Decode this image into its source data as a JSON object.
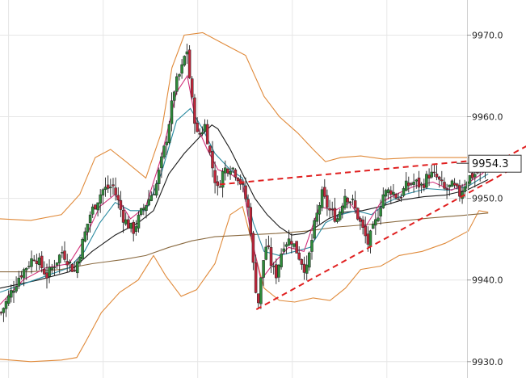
{
  "chart_data": {
    "type": "candlestick",
    "y_axis": {
      "position": "right",
      "ylim": [
        9928.0,
        9974.3
      ],
      "tick_labels": [
        "9970.0",
        "9960.0",
        "9950.0",
        "9940.0",
        "9930.0"
      ],
      "tick_values": [
        9970.0,
        9960.0,
        9950.0,
        9940.0,
        9930.0
      ]
    },
    "current_price_label": "9954.3",
    "current_price_value": 9954.3,
    "grid": true,
    "grid_x_bars": [
      4,
      48,
      92,
      136,
      180
    ],
    "bars": 190,
    "colors": {
      "up": "#2e8b3a",
      "down": "#c0263a",
      "bollinger": "#e08a3a",
      "ma_fast": "#d1307a",
      "ma_mid": "#2a8aa0",
      "ma_slow": "#1a1a1a",
      "ma_long": "#8a6a40",
      "trendline": "#e02020",
      "grid": "#e6e6e6"
    },
    "key_points": [
      [
        0,
        9936.0
      ],
      [
        12,
        9940.5
      ],
      [
        22,
        9943.0
      ],
      [
        30,
        9940.5
      ],
      [
        40,
        9943.5
      ],
      [
        48,
        9941.0
      ],
      [
        53,
        9944.5
      ],
      [
        58,
        9948.0
      ],
      [
        66,
        9951.0
      ],
      [
        73,
        9951.5
      ],
      [
        80,
        9947.5
      ],
      [
        86,
        9946.0
      ],
      [
        92,
        9948.5
      ],
      [
        101,
        9951.5
      ],
      [
        108,
        9957.5
      ],
      [
        113,
        9963.5
      ],
      [
        118,
        9966.0
      ],
      [
        121,
        9968.5
      ],
      [
        124,
        9962.5
      ],
      [
        128,
        9957.5
      ],
      [
        133,
        9959.0
      ],
      [
        137,
        9954.5
      ],
      [
        141,
        9951.0
      ],
      [
        145,
        9953.5
      ],
      [
        150,
        9954.0
      ],
      [
        155,
        9952.5
      ],
      [
        158,
        9951.0
      ],
      [
        162,
        9948.0
      ],
      [
        165,
        9940.0
      ],
      [
        168,
        9937.0
      ],
      [
        170,
        9941.5
      ],
      [
        173,
        9944.5
      ],
      [
        176,
        9942.0
      ],
      [
        179,
        9940.5
      ],
      [
        184,
        9944.5
      ],
      [
        189,
        9945.0
      ],
      [
        194,
        9943.0
      ],
      [
        199,
        9941.0
      ],
      [
        204,
        9946.5
      ],
      [
        209,
        9950.5
      ],
      [
        214,
        9948.5
      ],
      [
        219,
        9947.5
      ],
      [
        224,
        9950.5
      ],
      [
        229,
        9949.5
      ],
      [
        234,
        9947.0
      ],
      [
        239,
        9944.5
      ],
      [
        244,
        9947.0
      ],
      [
        249,
        9950.5
      ],
      [
        254,
        9951.0
      ],
      [
        259,
        9950.0
      ],
      [
        264,
        9951.5
      ],
      [
        269,
        9952.0
      ],
      [
        274,
        9951.5
      ],
      [
        279,
        9953.0
      ],
      [
        284,
        9952.5
      ],
      [
        289,
        9951.0
      ],
      [
        294,
        9951.5
      ],
      [
        299,
        9950.5
      ],
      [
        304,
        9952.5
      ],
      [
        309,
        9953.0
      ],
      [
        314,
        9953.5
      ],
      [
        318,
        9954.3
      ]
    ],
    "bollinger_upper": [
      [
        0,
        9947.5
      ],
      [
        20,
        9947.3
      ],
      [
        40,
        9948.0
      ],
      [
        52,
        9950.5
      ],
      [
        62,
        9955.0
      ],
      [
        72,
        9956.0
      ],
      [
        82,
        9954.5
      ],
      [
        95,
        9952.5
      ],
      [
        105,
        9958.0
      ],
      [
        112,
        9966.0
      ],
      [
        120,
        9970.0
      ],
      [
        132,
        9970.3
      ],
      [
        145,
        9969.0
      ],
      [
        160,
        9967.5
      ],
      [
        172,
        9962.5
      ],
      [
        182,
        9960.0
      ],
      [
        194,
        9958.0
      ],
      [
        204,
        9956.0
      ],
      [
        212,
        9954.5
      ],
      [
        222,
        9955.0
      ],
      [
        235,
        9955.2
      ],
      [
        250,
        9954.8
      ],
      [
        270,
        9955.0
      ],
      [
        290,
        9955.0
      ],
      [
        310,
        9955.0
      ],
      [
        318,
        9954.8
      ]
    ],
    "bollinger_lower": [
      [
        0,
        9930.3
      ],
      [
        20,
        9930.0
      ],
      [
        40,
        9930.2
      ],
      [
        50,
        9930.5
      ],
      [
        56,
        9932.5
      ],
      [
        66,
        9936.0
      ],
      [
        78,
        9938.5
      ],
      [
        90,
        9940.0
      ],
      [
        100,
        9943.0
      ],
      [
        108,
        9940.5
      ],
      [
        118,
        9938.0
      ],
      [
        128,
        9938.8
      ],
      [
        140,
        9942.0
      ],
      [
        150,
        9948.0
      ],
      [
        158,
        9949.0
      ],
      [
        165,
        9944.0
      ],
      [
        172,
        9939.0
      ],
      [
        182,
        9937.5
      ],
      [
        192,
        9937.3
      ],
      [
        204,
        9937.8
      ],
      [
        215,
        9937.5
      ],
      [
        225,
        9939.0
      ],
      [
        235,
        9941.3
      ],
      [
        248,
        9941.7
      ],
      [
        260,
        9943.0
      ],
      [
        275,
        9943.5
      ],
      [
        290,
        9944.5
      ],
      [
        305,
        9946.0
      ],
      [
        312,
        9948.5
      ],
      [
        318,
        9948.3
      ]
    ],
    "ma_fast": [
      [
        0,
        9937.0
      ],
      [
        15,
        9940.0
      ],
      [
        30,
        9941.5
      ],
      [
        45,
        9942.0
      ],
      [
        55,
        9945.0
      ],
      [
        65,
        9949.0
      ],
      [
        75,
        9950.5
      ],
      [
        85,
        9947.5
      ],
      [
        95,
        9949.0
      ],
      [
        105,
        9955.0
      ],
      [
        115,
        9963.0
      ],
      [
        122,
        9965.0
      ],
      [
        128,
        9959.0
      ],
      [
        135,
        9956.0
      ],
      [
        142,
        9953.5
      ],
      [
        150,
        9953.0
      ],
      [
        158,
        9952.0
      ],
      [
        164,
        9945.0
      ],
      [
        170,
        9940.0
      ],
      [
        178,
        9942.0
      ],
      [
        188,
        9944.0
      ],
      [
        198,
        9943.5
      ],
      [
        208,
        9949.0
      ],
      [
        218,
        9948.5
      ],
      [
        228,
        9949.5
      ],
      [
        238,
        9946.5
      ],
      [
        248,
        9949.5
      ],
      [
        258,
        9950.5
      ],
      [
        270,
        9951.5
      ],
      [
        282,
        9952.0
      ],
      [
        294,
        9951.0
      ],
      [
        304,
        9951.8
      ],
      [
        314,
        9953.0
      ],
      [
        318,
        9953.8
      ]
    ],
    "ma_mid": [
      [
        0,
        9938.5
      ],
      [
        15,
        9939.5
      ],
      [
        30,
        9940.5
      ],
      [
        45,
        9941.5
      ],
      [
        55,
        9943.5
      ],
      [
        65,
        9947.0
      ],
      [
        75,
        9949.5
      ],
      [
        85,
        9948.5
      ],
      [
        95,
        9948.5
      ],
      [
        105,
        9953.0
      ],
      [
        115,
        9959.5
      ],
      [
        124,
        9961.0
      ],
      [
        132,
        9958.5
      ],
      [
        140,
        9955.5
      ],
      [
        150,
        9953.5
      ],
      [
        158,
        9952.5
      ],
      [
        165,
        9947.0
      ],
      [
        172,
        9943.5
      ],
      [
        182,
        9943.0
      ],
      [
        192,
        9943.5
      ],
      [
        202,
        9944.0
      ],
      [
        212,
        9947.0
      ],
      [
        222,
        9948.0
      ],
      [
        232,
        9948.5
      ],
      [
        242,
        9948.0
      ],
      [
        252,
        9949.5
      ],
      [
        264,
        9950.5
      ],
      [
        278,
        9951.2
      ],
      [
        292,
        9951.0
      ],
      [
        305,
        9951.5
      ],
      [
        318,
        9953.0
      ]
    ],
    "ma_slow": [
      [
        0,
        9939.0
      ],
      [
        25,
        9940.0
      ],
      [
        45,
        9941.0
      ],
      [
        60,
        9943.5
      ],
      [
        75,
        9945.5
      ],
      [
        90,
        9947.0
      ],
      [
        100,
        9948.5
      ],
      [
        110,
        9953.0
      ],
      [
        120,
        9955.5
      ],
      [
        130,
        9957.5
      ],
      [
        138,
        9959.0
      ],
      [
        142,
        9958.5
      ],
      [
        150,
        9956.0
      ],
      [
        158,
        9953.0
      ],
      [
        166,
        9950.0
      ],
      [
        174,
        9948.0
      ],
      [
        182,
        9946.5
      ],
      [
        190,
        9945.5
      ],
      [
        198,
        9945.7
      ],
      [
        206,
        9946.5
      ],
      [
        214,
        9947.5
      ],
      [
        224,
        9948.3
      ],
      [
        236,
        9948.5
      ],
      [
        248,
        9949.0
      ],
      [
        262,
        9949.8
      ],
      [
        276,
        9950.2
      ],
      [
        290,
        9950.4
      ],
      [
        304,
        9951.0
      ],
      [
        318,
        9952.3
      ]
    ],
    "ma_long": [
      [
        0,
        9941.0
      ],
      [
        20,
        9941.0
      ],
      [
        40,
        9941.3
      ],
      [
        60,
        9942.0
      ],
      [
        80,
        9942.5
      ],
      [
        95,
        9943.0
      ],
      [
        110,
        9944.0
      ],
      [
        125,
        9944.8
      ],
      [
        140,
        9945.3
      ],
      [
        160,
        9945.5
      ],
      [
        180,
        9945.7
      ],
      [
        200,
        9946.0
      ],
      [
        220,
        9946.5
      ],
      [
        240,
        9946.8
      ],
      [
        260,
        9947.2
      ],
      [
        280,
        9947.6
      ],
      [
        300,
        9947.9
      ],
      [
        318,
        9948.2
      ]
    ],
    "trendline_upper": [
      [
        143,
        9951.7
      ],
      [
        329,
        9955.0
      ]
    ],
    "trendline_upper_ext": [
      [
        329,
        9955.0
      ],
      [
        352,
        9957.3
      ]
    ],
    "trendline_lower": [
      [
        167,
        9936.4
      ],
      [
        318,
        9952.0
      ]
    ],
    "trendline_lower_ext": [
      [
        318,
        9952.0
      ],
      [
        339,
        9954.2
      ]
    ]
  }
}
